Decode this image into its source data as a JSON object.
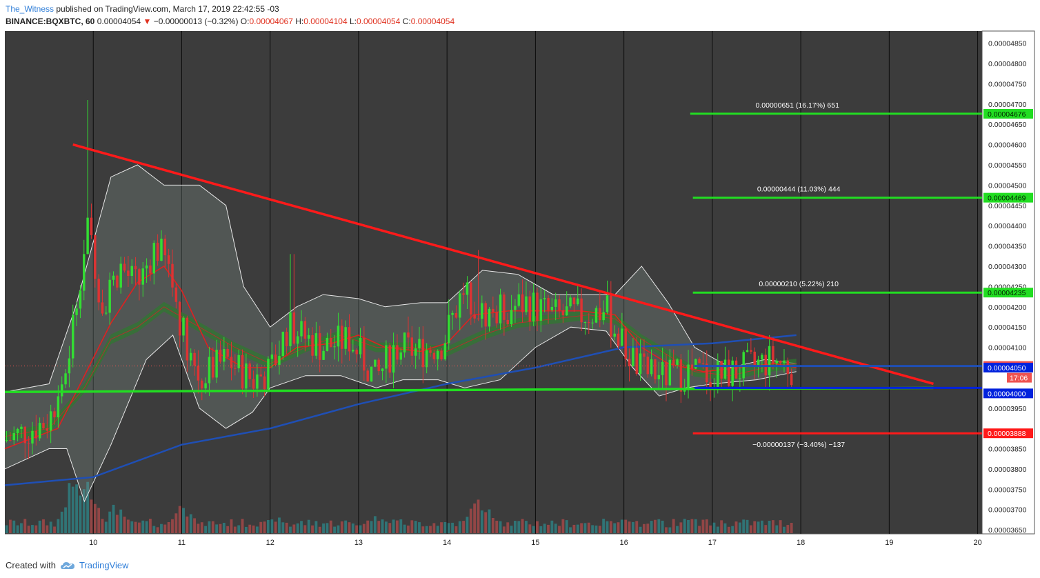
{
  "header": {
    "user": "The_Witness",
    "published": "published on TradingView.com, March 17, 2019 22:42:55 -03",
    "symbol": "BINANCE:BQXBTC, 60",
    "last": "0.00004054",
    "change_arrow": "▼",
    "change": "−0.00000013 (−0.32%)",
    "o_label": "O:",
    "o_value": "0.00004067",
    "h_label": "H:",
    "h_value": "0.00004104",
    "l_label": "L:",
    "l_value": "0.00004054",
    "c_label": "C:",
    "c_value": "0.00004054"
  },
  "footer": {
    "created_with": "Created with",
    "brand": "TradingView",
    "logo_icon": "tradingview-cloud-icon"
  },
  "colors": {
    "background": "#3c3c3c",
    "grid": "#000000",
    "trend_red": "#ff1a1a",
    "support_green": "#22dd22",
    "ma_blue": "#1f4fb5",
    "bb_line": "#e8e8e8",
    "bb_fill": "#8a9a94",
    "candle_up": "#33dd33",
    "candle_down": "#dd3333",
    "vol_up": "#2e7e80",
    "vol_down": "#a24848"
  },
  "chart_data": {
    "type": "candlestick",
    "timeframe": "60",
    "x_axis": {
      "tick_labels": [
        "10",
        "11",
        "12",
        "13",
        "14",
        "15",
        "16",
        "17",
        "18",
        "19",
        "20"
      ],
      "range_days": [
        9.0,
        20.05
      ]
    },
    "y_axis": {
      "range": [
        3.64e-05,
        4.88e-05
      ],
      "tick_labels": [
        "0.00004850",
        "0.00004800",
        "0.00004750",
        "0.00004700",
        "0.00004650",
        "0.00004600",
        "0.00004550",
        "0.00004500",
        "0.00004450",
        "0.00004400",
        "0.00004350",
        "0.00004300",
        "0.00004250",
        "0.00004200",
        "0.00004150",
        "0.00004100",
        "0.00003950",
        "0.00003850",
        "0.00003800",
        "0.00003750",
        "0.00003700",
        "0.00003650"
      ]
    },
    "price_tags": [
      {
        "value": 4.676e-05,
        "label": "0.00004676",
        "color": "#22dd22"
      },
      {
        "value": 4.469e-05,
        "label": "0.00004469",
        "color": "#22dd22"
      },
      {
        "value": 4.235e-05,
        "label": "0.00004235",
        "color": "#22dd22"
      },
      {
        "value": 4.054e-05,
        "label": "0.00004054",
        "color": "#ef5350"
      },
      {
        "value": 4.05e-05,
        "label": "0.00004050",
        "color": "#0022dd"
      },
      {
        "value": 4e-05,
        "label": "0.00004000",
        "color": "#0022dd"
      },
      {
        "value": 3.888e-05,
        "label": "0.00003888",
        "color": "#ff1a1a"
      }
    ],
    "countdown": "17:06",
    "horizontal_levels": [
      {
        "value": 4.676e-05,
        "x_start": 16.75,
        "x_end": 20.05,
        "color": "#22dd22",
        "annotation": "0.00000651 (16.17%) 651"
      },
      {
        "value": 4.469e-05,
        "x_start": 16.78,
        "x_end": 20.05,
        "color": "#22dd22",
        "annotation": "0.00000444 (11.03%) 444"
      },
      {
        "value": 4.235e-05,
        "x_start": 16.78,
        "x_end": 20.05,
        "color": "#22dd22",
        "annotation": "0.00000210 (5.22%) 210"
      },
      {
        "value": 4.054e-05,
        "x_start": 16.8,
        "x_end": 20.05,
        "color": "#1f4fb5",
        "annotation": ""
      },
      {
        "value": 4e-05,
        "x_start": 16.8,
        "x_end": 20.05,
        "color": "#0022dd",
        "annotation": ""
      },
      {
        "value": 3.888e-05,
        "x_start": 16.78,
        "x_end": 20.05,
        "color": "#ff1a1a",
        "annotation": "−0.00000137 (−3.40%) −137"
      }
    ],
    "trend_lines": [
      {
        "name": "",
        "color": "#ff1a1a",
        "from": [
          9.77,
          4.6e-05
        ],
        "to": [
          19.5,
          4.01e-05
        ]
      },
      {
        "name": "",
        "color": "#22dd22",
        "from": [
          9.0,
          3.99e-05
        ],
        "to": [
          19.5,
          4e-05
        ]
      }
    ],
    "moving_average": {
      "color": "#1f4fb5",
      "points": [
        [
          9.0,
          3.76e-05
        ],
        [
          10.0,
          3.78e-05
        ],
        [
          11.0,
          3.86e-05
        ],
        [
          12.0,
          3.9e-05
        ],
        [
          13.0,
          3.96e-05
        ],
        [
          14.0,
          4.01e-05
        ],
        [
          15.0,
          4.05e-05
        ],
        [
          16.0,
          4.1e-05
        ],
        [
          17.0,
          4.11e-05
        ],
        [
          17.95,
          4.13e-05
        ]
      ]
    },
    "bollinger_bands": {
      "upper": [
        [
          9.0,
          3.99e-05
        ],
        [
          9.5,
          4.01e-05
        ],
        [
          9.8,
          4.2e-05
        ],
        [
          10.2,
          4.52e-05
        ],
        [
          10.5,
          4.55e-05
        ],
        [
          10.8,
          4.5e-05
        ],
        [
          11.2,
          4.5e-05
        ],
        [
          11.5,
          4.45e-05
        ],
        [
          11.7,
          4.25e-05
        ],
        [
          12.0,
          4.15e-05
        ],
        [
          12.3,
          4.2e-05
        ],
        [
          12.6,
          4.23e-05
        ],
        [
          13.0,
          4.22e-05
        ],
        [
          13.3,
          4.2e-05
        ],
        [
          13.7,
          4.21e-05
        ],
        [
          14.0,
          4.21e-05
        ],
        [
          14.4,
          4.29e-05
        ],
        [
          14.8,
          4.28e-05
        ],
        [
          15.2,
          4.23e-05
        ],
        [
          15.6,
          4.23e-05
        ],
        [
          15.9,
          4.23e-05
        ],
        [
          16.2,
          4.3e-05
        ],
        [
          16.5,
          4.21e-05
        ],
        [
          16.8,
          4.1e-05
        ],
        [
          17.2,
          4.05e-05
        ],
        [
          17.6,
          4.07e-05
        ],
        [
          17.95,
          4.06e-05
        ]
      ],
      "lower": [
        [
          9.0,
          3.8e-05
        ],
        [
          9.5,
          3.85e-05
        ],
        [
          9.7,
          3.85e-05
        ],
        [
          9.9,
          3.72e-05
        ],
        [
          10.2,
          3.86e-05
        ],
        [
          10.6,
          4.07e-05
        ],
        [
          10.9,
          4.13e-05
        ],
        [
          11.2,
          3.95e-05
        ],
        [
          11.5,
          3.9e-05
        ],
        [
          11.8,
          3.94e-05
        ],
        [
          12.0,
          4e-05
        ],
        [
          12.4,
          4.03e-05
        ],
        [
          12.8,
          4.03e-05
        ],
        [
          13.2,
          4e-05
        ],
        [
          13.5,
          4.02e-05
        ],
        [
          13.9,
          4.02e-05
        ],
        [
          14.2,
          4e-05
        ],
        [
          14.6,
          4.02e-05
        ],
        [
          15.0,
          4.1e-05
        ],
        [
          15.4,
          4.15e-05
        ],
        [
          15.8,
          4.14e-05
        ],
        [
          16.1,
          4.05e-05
        ],
        [
          16.4,
          3.98e-05
        ],
        [
          16.7,
          4e-05
        ],
        [
          17.0,
          4.01e-05
        ],
        [
          17.5,
          4.02e-05
        ],
        [
          17.95,
          4.04e-05
        ]
      ]
    },
    "ema_ribbon": [
      [
        9.0,
        3.88e-05
      ],
      [
        9.5,
        3.9e-05
      ],
      [
        9.9,
        4e-05
      ],
      [
        10.2,
        4.12e-05
      ],
      [
        10.5,
        4.15e-05
      ],
      [
        10.8,
        4.2e-05
      ],
      [
        11.2,
        4.15e-05
      ],
      [
        11.6,
        4.1e-05
      ],
      [
        12.0,
        4.06e-05
      ],
      [
        12.4,
        4.1e-05
      ],
      [
        12.8,
        4.13e-05
      ],
      [
        13.2,
        4.1e-05
      ],
      [
        13.6,
        4.1e-05
      ],
      [
        14.0,
        4.09e-05
      ],
      [
        14.4,
        4.13e-05
      ],
      [
        14.8,
        4.16e-05
      ],
      [
        15.2,
        4.17e-05
      ],
      [
        15.6,
        4.18e-05
      ],
      [
        15.9,
        4.17e-05
      ],
      [
        16.2,
        4.12e-05
      ],
      [
        16.5,
        4.08e-05
      ],
      [
        16.8,
        4.04e-05
      ],
      [
        17.2,
        4.03e-05
      ],
      [
        17.6,
        4.05e-05
      ],
      [
        17.95,
        4.06e-05
      ]
    ],
    "ema_short": [
      [
        9.0,
        3.85e-05
      ],
      [
        9.6,
        3.9e-05
      ],
      [
        9.9,
        4.03e-05
      ],
      [
        10.2,
        4.16e-05
      ],
      [
        10.5,
        4.26e-05
      ],
      [
        10.8,
        4.3e-05
      ],
      [
        11.0,
        4.24e-05
      ],
      [
        11.3,
        4.1e-05
      ],
      [
        11.7,
        4.05e-05
      ],
      [
        12.0,
        4.05e-05
      ],
      [
        12.3,
        4.1e-05
      ],
      [
        12.7,
        4.11e-05
      ],
      [
        13.0,
        4.13e-05
      ],
      [
        13.3,
        4.1e-05
      ],
      [
        13.7,
        4.09e-05
      ],
      [
        14.0,
        4.11e-05
      ],
      [
        14.3,
        4.18e-05
      ],
      [
        14.7,
        4.19e-05
      ],
      [
        15.1,
        4.19e-05
      ],
      [
        15.5,
        4.19e-05
      ],
      [
        15.9,
        4.18e-05
      ],
      [
        16.2,
        4.1e-05
      ],
      [
        16.5,
        4.06e-05
      ],
      [
        16.9,
        4.04e-05
      ],
      [
        17.3,
        4.05e-05
      ],
      [
        17.7,
        4.06e-05
      ],
      [
        17.95,
        4.05e-05
      ]
    ],
    "price_path": [
      [
        9.0,
        3.87e-05
      ],
      [
        9.5,
        3.92e-05
      ],
      [
        9.7,
        4.05e-05
      ],
      [
        9.85,
        4.28e-05
      ],
      [
        9.95,
        4.4e-05
      ],
      [
        10.1,
        4.2e-05
      ],
      [
        10.3,
        4.3e-05
      ],
      [
        10.5,
        4.25e-05
      ],
      [
        10.7,
        4.35e-05
      ],
      [
        10.85,
        4.3e-05
      ],
      [
        11.0,
        4.15e-05
      ],
      [
        11.2,
        4.02e-05
      ],
      [
        11.5,
        4.07e-05
      ],
      [
        11.8,
        4.02e-05
      ],
      [
        12.0,
        4.04e-05
      ],
      [
        12.2,
        4.15e-05
      ],
      [
        12.35,
        4.13e-05
      ],
      [
        12.6,
        4.1e-05
      ],
      [
        12.9,
        4.12e-05
      ],
      [
        13.2,
        4.02e-05
      ],
      [
        13.4,
        4.1e-05
      ],
      [
        13.7,
        4.09e-05
      ],
      [
        13.95,
        4.11e-05
      ],
      [
        14.2,
        4.25e-05
      ],
      [
        14.4,
        4.18e-05
      ],
      [
        14.6,
        4.19e-05
      ],
      [
        14.9,
        4.21e-05
      ],
      [
        15.2,
        4.18e-05
      ],
      [
        15.5,
        4.18e-05
      ],
      [
        15.8,
        4.19e-05
      ],
      [
        16.0,
        4.1e-05
      ],
      [
        16.2,
        4.04e-05
      ],
      [
        16.5,
        4.03e-05
      ],
      [
        16.8,
        4.04e-05
      ],
      [
        17.1,
        4.03e-05
      ],
      [
        17.4,
        4.05e-05
      ],
      [
        17.7,
        4.07e-05
      ],
      [
        17.9,
        4.05e-05
      ]
    ],
    "spikes": [
      [
        9.95,
        4.71e-05
      ],
      [
        12.25,
        4.33e-05
      ],
      [
        14.35,
        4.34e-05
      ],
      [
        17.65,
        4.13e-05
      ]
    ],
    "volume_clusters": [
      [
        9.8,
        1.0
      ],
      [
        9.95,
        0.85
      ],
      [
        10.25,
        0.45
      ],
      [
        11.0,
        0.5
      ],
      [
        12.1,
        0.25
      ],
      [
        13.2,
        0.3
      ],
      [
        14.35,
        0.5
      ],
      [
        14.45,
        0.45
      ],
      [
        16.0,
        0.25
      ],
      [
        16.7,
        0.2
      ]
    ]
  }
}
